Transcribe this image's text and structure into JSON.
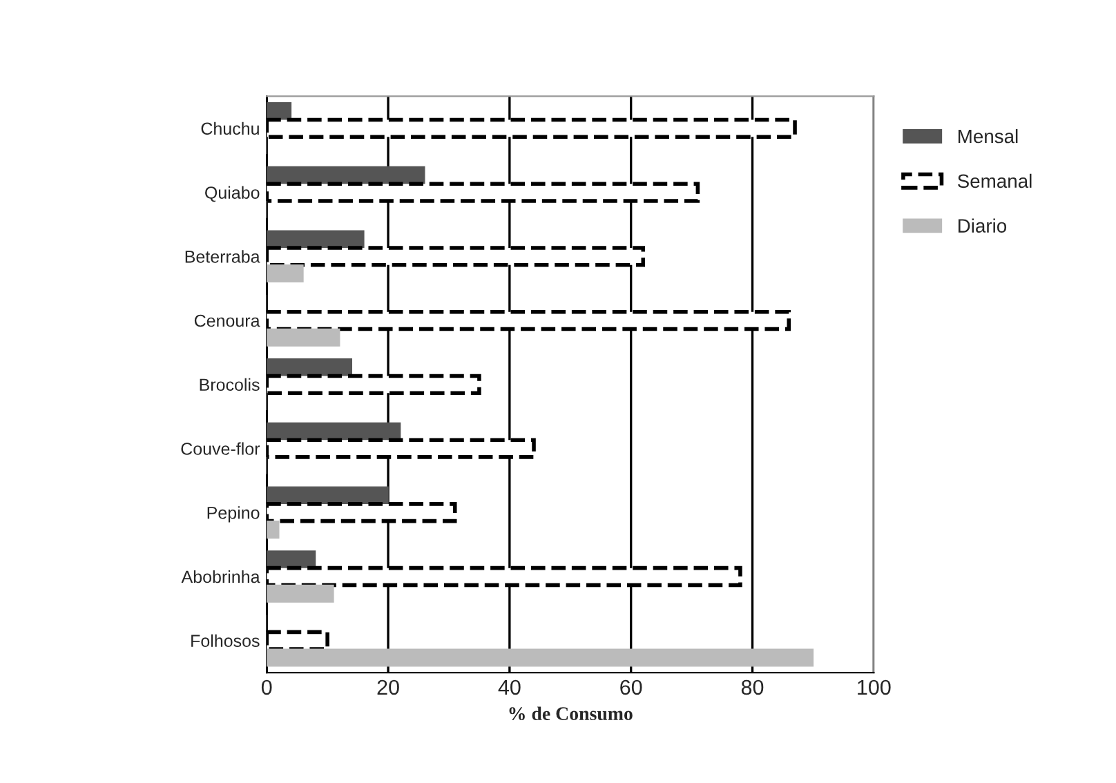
{
  "chart_data": {
    "type": "bar",
    "orientation": "horizontal",
    "xlabel": "% de Consumo",
    "categories": [
      "Chuchu",
      "Quiabo",
      "Beterraba",
      "Cenoura",
      "Brocolis",
      "Couve-flor",
      "Pepino",
      "Abobrinha",
      "Folhosos"
    ],
    "series": [
      {
        "name": "Mensal",
        "color": "#555555",
        "values": [
          4,
          26,
          16,
          0,
          14,
          22,
          20,
          8,
          0
        ]
      },
      {
        "name": "Semanal",
        "color": "#ffffff",
        "line_style": "dashed",
        "values": [
          87,
          71,
          62,
          86,
          35,
          44,
          31,
          78,
          10
        ]
      },
      {
        "name": "Diario",
        "color": "#bbbbbb",
        "values": [
          0,
          0,
          6,
          12,
          0,
          0,
          2,
          11,
          90
        ]
      }
    ],
    "xlim": [
      0,
      100
    ],
    "xticks": [
      0,
      20,
      40,
      60,
      80,
      100
    ],
    "grid": "x",
    "legend": "right"
  }
}
